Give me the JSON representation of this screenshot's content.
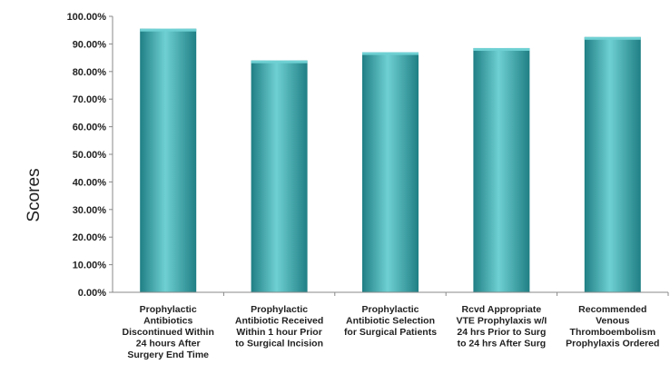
{
  "chart_data": {
    "type": "bar",
    "title": "",
    "xlabel": "",
    "ylabel": "Scores",
    "ylim": [
      0,
      100
    ],
    "y_tick_step": 10,
    "y_tick_format": "percent_2dp",
    "grid": false,
    "legend": "none",
    "categories": [
      [
        "Prophylactic",
        "Antibiotics",
        "Discontinued Within",
        "24 hours After",
        "Surgery End Time"
      ],
      [
        "Prophylactic",
        "Antibiotic Received",
        "Within 1 hour Prior",
        "to Surgical Incision"
      ],
      [
        "Prophylactic",
        "Antibiotic Selection",
        "for Surgical Patients"
      ],
      [
        "Rcvd Appropriate",
        "VTE Prophylaxis w/I",
        "24 hrs Prior to Surg",
        "to 24 hrs After Surg"
      ],
      [
        "Recommended",
        "Venous",
        "Thromboembolism",
        "Prophylaxis Ordered"
      ]
    ],
    "values": [
      95.5,
      84.0,
      87.0,
      88.5,
      92.5
    ],
    "bar_color": "#3aa8ad",
    "bar_color_light": "#6fd0d3",
    "bar_color_dark": "#1f7f84"
  }
}
